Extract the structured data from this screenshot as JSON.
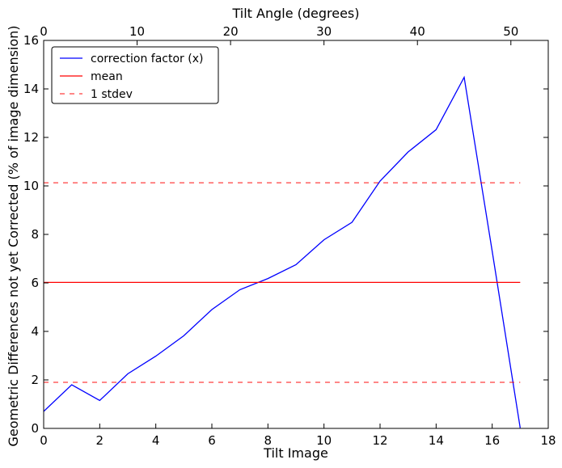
{
  "chart_data": {
    "type": "line",
    "xlabel": "Tilt Image",
    "x2label": "Tilt Angle (degrees)",
    "ylabel": "Geometric Differences not yet Corrected (% of image dimension)",
    "xlim": [
      0,
      18
    ],
    "ylim": [
      0,
      16
    ],
    "x2lim": [
      0,
      54
    ],
    "x_ticks": [
      0,
      2,
      4,
      6,
      8,
      10,
      12,
      14,
      16,
      18
    ],
    "x2_ticks": [
      0,
      10,
      20,
      30,
      40,
      50
    ],
    "y_ticks": [
      0,
      2,
      4,
      6,
      8,
      10,
      12,
      14,
      16
    ],
    "legend_position": "upper-left",
    "series": [
      {
        "name": "correction factor (x)",
        "kind": "line",
        "color": "#0000ff",
        "x": [
          0,
          1,
          2,
          3,
          4,
          5,
          6,
          7,
          8,
          9,
          10,
          11,
          12,
          13,
          14,
          15,
          16,
          17
        ],
        "y": [
          0.7,
          1.8,
          1.15,
          2.25,
          2.98,
          3.82,
          4.9,
          5.72,
          6.18,
          6.75,
          7.78,
          8.5,
          10.2,
          11.4,
          12.32,
          14.48,
          7.3,
          0.02
        ]
      },
      {
        "name": "mean",
        "kind": "hline",
        "color": "#ff0000",
        "y": 6.02,
        "x": [
          0,
          17
        ]
      },
      {
        "name": "1 stdev",
        "kind": "hline-dashed",
        "color": "#ff0000",
        "y_values": [
          1.9,
          10.13
        ],
        "x": [
          0,
          17
        ]
      }
    ]
  }
}
